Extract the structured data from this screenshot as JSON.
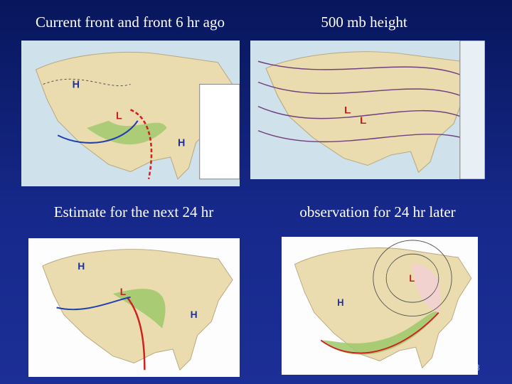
{
  "slide": {
    "panels": [
      {
        "caption": "Current front and front 6 hr ago",
        "pressure_labels": [
          "H",
          "L",
          "H"
        ]
      },
      {
        "caption": "500 mb height",
        "pressure_labels": [
          "L",
          "L"
        ]
      },
      {
        "caption": "Estimate for the next 24 hr",
        "pressure_labels": [
          "H",
          "L",
          "H"
        ]
      },
      {
        "caption": "observation for 24 hr later",
        "pressure_labels": [
          "H",
          "L"
        ]
      }
    ],
    "page_number": "3"
  }
}
